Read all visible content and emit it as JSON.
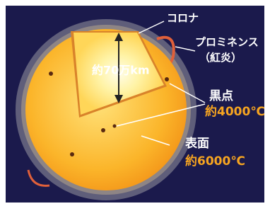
{
  "labels": {
    "corona": "コロナ",
    "prominence": "プロミネンス",
    "prominence_note": "（紅炎）",
    "depth": "約70万km",
    "sunspot": "黒点",
    "sunspot_temp": "約4000℃",
    "surface": "表面",
    "surface_temp": "約6000℃"
  }
}
